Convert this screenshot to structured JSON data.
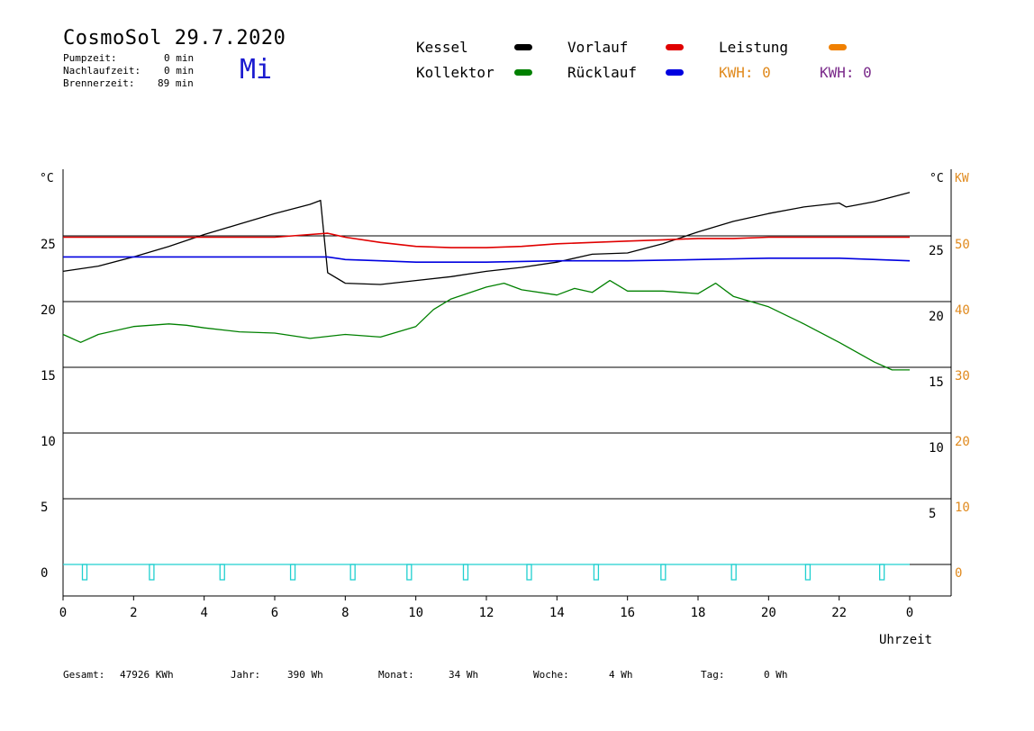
{
  "header": {
    "title": "CosmoSol 29.7.2020",
    "day": "Mi",
    "stats": [
      {
        "label": "Pumpzeit:",
        "value": "0 min"
      },
      {
        "label": "Nachlaufzeit:",
        "value": "0 min"
      },
      {
        "label": "Brennerzeit:",
        "value": "89 min"
      }
    ]
  },
  "legend": {
    "items": [
      {
        "label": "Kessel",
        "color": "#000000"
      },
      {
        "label": "Kollektor",
        "color": "#008000"
      },
      {
        "label": "Vorlauf",
        "color": "#e00000"
      },
      {
        "label": "Rücklauf",
        "color": "#0000e0"
      },
      {
        "label": "Leistung",
        "color": "#f08000"
      }
    ],
    "kwh_orange": "KWH: 0",
    "kwh_purple": "KWH: 0"
  },
  "footer": {
    "gesamt_label": "Gesamt:",
    "gesamt_value": "47926 KWh",
    "jahr_label": "Jahr:",
    "jahr_value": "390 Wh",
    "monat_label": "Monat:",
    "monat_value": "34 Wh",
    "woche_label": "Woche:",
    "woche_value": "4 Wh",
    "tag_label": "Tag:",
    "tag_value": "0 Wh"
  },
  "chart_data": {
    "type": "line",
    "xlabel": "Uhrzeit",
    "x_ticks": [
      "0",
      "2",
      "4",
      "6",
      "8",
      "10",
      "12",
      "14",
      "16",
      "18",
      "20",
      "22",
      "0"
    ],
    "xlim": [
      0,
      24
    ],
    "y_left_unit": "°C",
    "y_left_ticks": [
      "0",
      "5",
      "10",
      "15",
      "20",
      "25"
    ],
    "ylim_left": [
      0,
      30
    ],
    "y_right_unit": "°C",
    "y_right_ticks": [
      "5",
      "10",
      "15",
      "20",
      "25"
    ],
    "ylim_right": [
      0,
      30
    ],
    "y_kw_unit": "KW",
    "y_kw_ticks": [
      "0",
      "10",
      "20",
      "30",
      "40",
      "50"
    ],
    "ylim_kw": [
      0,
      60
    ],
    "series": [
      {
        "name": "Kessel",
        "color": "#000000",
        "x": [
          0,
          1,
          2,
          3,
          4,
          5,
          6,
          7,
          7.3,
          7.5,
          8,
          9,
          10,
          11,
          12,
          13,
          14,
          15,
          16,
          17,
          18,
          19,
          20,
          21,
          22,
          22.2,
          23,
          24
        ],
        "y": [
          22.3,
          22.7,
          23.4,
          24.2,
          25.1,
          25.9,
          26.7,
          27.4,
          27.7,
          22.2,
          21.4,
          21.3,
          21.6,
          21.9,
          22.3,
          22.6,
          23.0,
          23.6,
          23.7,
          24.4,
          25.3,
          26.1,
          26.7,
          27.2,
          27.5,
          27.2,
          27.6,
          28.3
        ]
      },
      {
        "name": "Kollektor",
        "color": "#008000",
        "x": [
          0,
          0.5,
          1,
          2,
          3,
          3.5,
          4,
          5,
          6,
          7,
          8,
          9,
          10,
          10.5,
          11,
          12,
          12.5,
          13,
          14,
          14.5,
          15,
          15.5,
          16,
          17,
          18,
          18.5,
          19,
          20,
          21,
          22,
          23,
          23.5,
          24
        ],
        "y": [
          17.5,
          16.9,
          17.5,
          18.1,
          18.3,
          18.2,
          18.0,
          17.7,
          17.6,
          17.2,
          17.5,
          17.3,
          18.1,
          19.4,
          20.2,
          21.1,
          21.4,
          20.9,
          20.5,
          21.0,
          20.7,
          21.6,
          20.8,
          20.8,
          20.6,
          21.4,
          20.4,
          19.6,
          18.3,
          16.9,
          15.4,
          14.8,
          14.8
        ]
      },
      {
        "name": "Vorlauf",
        "color": "#e00000",
        "x": [
          0,
          2,
          4,
          6,
          7,
          7.5,
          8,
          9,
          10,
          11,
          12,
          13,
          14,
          15,
          16,
          17,
          18,
          19,
          20,
          21,
          22,
          23,
          24
        ],
        "y": [
          24.9,
          24.9,
          24.9,
          24.9,
          25.1,
          25.2,
          24.9,
          24.5,
          24.2,
          24.1,
          24.1,
          24.2,
          24.4,
          24.5,
          24.6,
          24.7,
          24.8,
          24.8,
          24.9,
          24.9,
          24.9,
          24.9,
          24.9
        ]
      },
      {
        "name": "Rücklauf",
        "color": "#0000e0",
        "x": [
          0,
          2,
          4,
          6,
          7,
          7.5,
          8,
          9,
          10,
          12,
          14,
          16,
          18,
          20,
          22,
          24
        ],
        "y": [
          23.4,
          23.4,
          23.4,
          23.4,
          23.4,
          23.4,
          23.2,
          23.1,
          23.0,
          23.0,
          23.1,
          23.1,
          23.2,
          23.3,
          23.3,
          23.1
        ]
      },
      {
        "name": "Leistung",
        "color": "#f08000",
        "x": [
          0,
          24
        ],
        "y": [
          0,
          0
        ]
      }
    ],
    "pump_pulses_x": [
      0.6,
      2.5,
      4.5,
      6.5,
      8.2,
      9.8,
      11.4,
      13.2,
      15.1,
      17.0,
      19.0,
      21.1,
      23.2
    ],
    "pulse_color": "#20d0d0",
    "grid_y": [
      0,
      5,
      10,
      15,
      20,
      25
    ]
  }
}
